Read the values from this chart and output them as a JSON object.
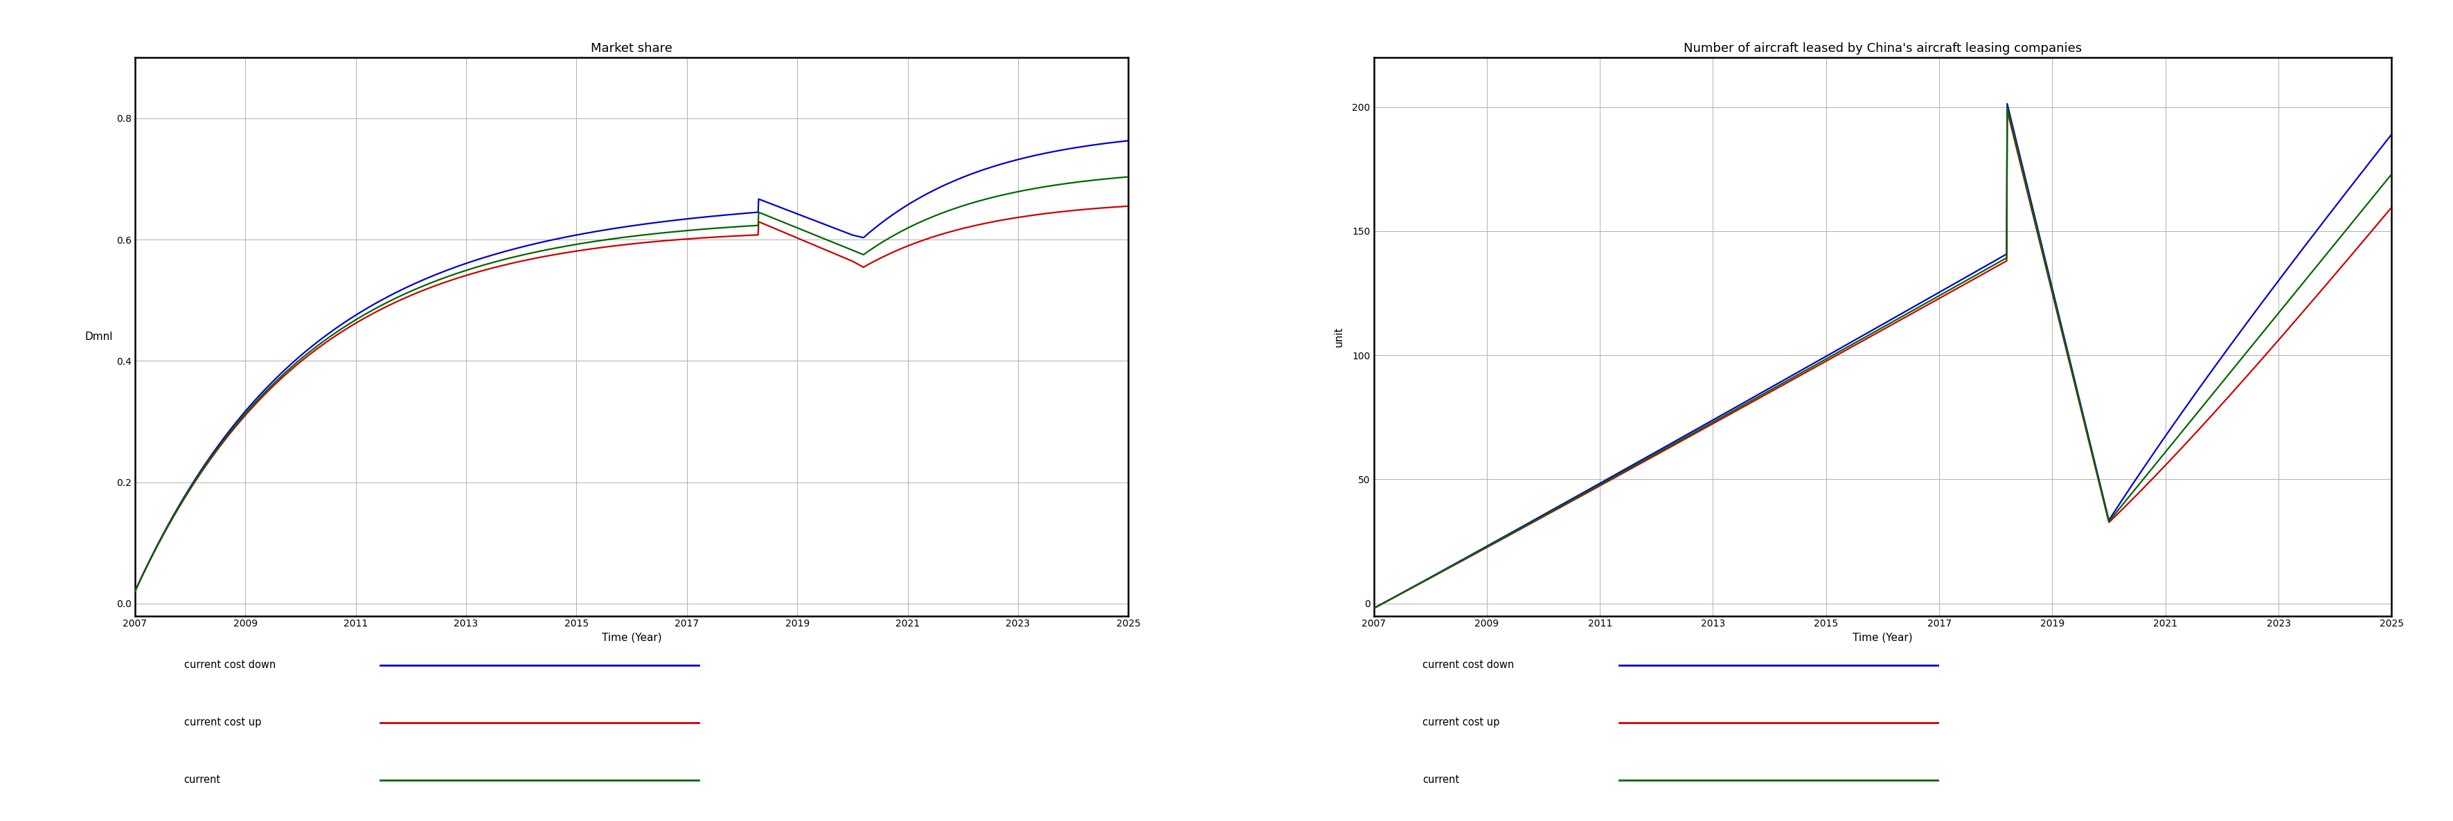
{
  "chart1": {
    "title": "Market share",
    "xlabel": "Time (Year)",
    "ylabel": "Dmnl",
    "xlim": [
      2007,
      2025
    ],
    "ylim": [
      -0.02,
      0.9
    ],
    "yticks": [
      0,
      0.2,
      0.4,
      0.6,
      0.8
    ],
    "xticks": [
      2007,
      2009,
      2011,
      2013,
      2015,
      2017,
      2019,
      2021,
      2023,
      2025
    ]
  },
  "chart2": {
    "title": "Number of aircraft leased by China's aircraft leasing companies",
    "xlabel": "Time (Year)",
    "ylabel": "unit",
    "xlim": [
      2007,
      2025
    ],
    "ylim": [
      -5,
      220
    ],
    "yticks": [
      0,
      50,
      100,
      150,
      200
    ],
    "xticks": [
      2007,
      2009,
      2011,
      2013,
      2015,
      2017,
      2019,
      2021,
      2023,
      2025
    ]
  },
  "legend_labels": [
    "current cost down",
    "current cost up",
    "current"
  ],
  "colors": {
    "cost_down": "#0000cc",
    "cost_up": "#cc0000",
    "current": "#006600"
  },
  "background_color": "#ffffff",
  "grid_color": "#b0b0b0"
}
